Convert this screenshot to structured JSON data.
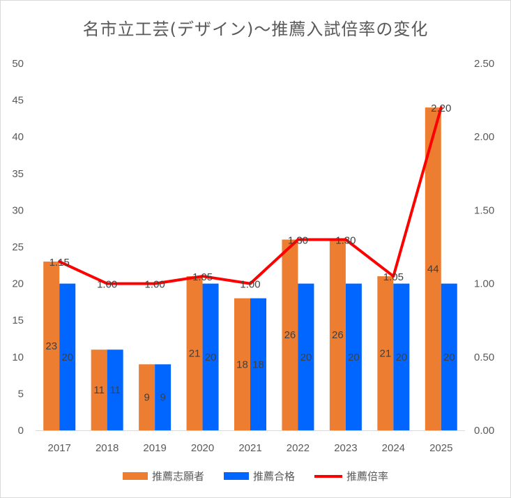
{
  "chart_data": {
    "type": "bar",
    "title": "名市立工芸(デザイン)～推薦入試倍率の変化",
    "categories": [
      "2017",
      "2018",
      "2019",
      "2020",
      "2021",
      "2022",
      "2023",
      "2024",
      "2025"
    ],
    "series": [
      {
        "name": "推薦志願者",
        "type": "bar",
        "axis": "left",
        "color": "#ED7D31",
        "values": [
          23,
          11,
          9,
          21,
          18,
          26,
          26,
          21,
          44
        ]
      },
      {
        "name": "推薦合格",
        "type": "bar",
        "axis": "left",
        "color": "#0066FF",
        "values": [
          20,
          11,
          9,
          20,
          18,
          20,
          20,
          20,
          20
        ]
      },
      {
        "name": "推薦倍率",
        "type": "line",
        "axis": "right",
        "color": "#FF0000",
        "values": [
          1.15,
          1.0,
          1.0,
          1.05,
          1.0,
          1.3,
          1.3,
          1.05,
          2.2
        ],
        "labels": [
          "1.15",
          "1.00",
          "1.00",
          "1.05",
          "1.00",
          "1.30",
          "1.30",
          "1.05",
          "2.20"
        ]
      }
    ],
    "y_left": {
      "ylim": [
        0,
        50
      ],
      "ticks": [
        "0",
        "5",
        "10",
        "15",
        "20",
        "25",
        "30",
        "35",
        "40",
        "45",
        "50"
      ]
    },
    "y_right": {
      "ylim": [
        0,
        2.5
      ],
      "ticks": [
        "0.00",
        "0.50",
        "1.00",
        "1.50",
        "2.00",
        "2.50"
      ]
    },
    "grid": false,
    "legend_position": "bottom"
  }
}
